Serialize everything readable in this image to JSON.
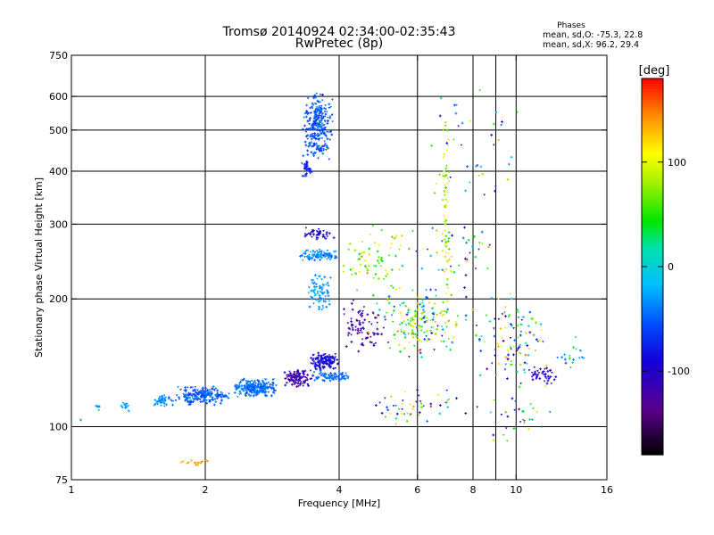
{
  "chart_data": {
    "type": "scatter",
    "title": "Tromsø 20140924 02:34:00-02:35:43",
    "subtitle": "RwPretec (8p)",
    "xlabel": "Frequency [MHz]",
    "ylabel": "Stationary phase Virtual Height [km]",
    "x_scale": "log",
    "y_scale": "log",
    "xlim": [
      1,
      16
    ],
    "ylim": [
      75,
      750
    ],
    "x_ticks": [
      1,
      2,
      4,
      6,
      8,
      10,
      16
    ],
    "x_tick_labels": [
      "1",
      "2",
      "4",
      "6",
      "8",
      "10",
      "16"
    ],
    "y_ticks": [
      75,
      100,
      200,
      300,
      400,
      500,
      600,
      750
    ],
    "y_tick_labels": [
      "75",
      "100",
      "200",
      "300",
      "400",
      "500",
      "600",
      "750"
    ],
    "x_gridlines": [
      2,
      4,
      6,
      8,
      10
    ],
    "x_minor_gridline": 9,
    "y_gridlines": [
      100,
      200,
      300,
      400,
      500,
      600
    ],
    "grid": true,
    "colorbar": {
      "label": "[deg]",
      "range": [
        -180,
        180
      ],
      "ticks": [
        -100,
        0,
        100
      ],
      "tick_labels": [
        "-100",
        "0",
        "100"
      ]
    },
    "stats": {
      "heading": "Phases",
      "line_o": "mean, sd,O: -75.3, 22.8",
      "line_x": "mean, sd,X:  96.2, 29.4"
    },
    "clusters": [
      {
        "x": [
          1.04,
          1.06
        ],
        "y": [
          103,
          106
        ],
        "n": 3,
        "phase": [
          -40,
          -25
        ]
      },
      {
        "x": [
          1.13,
          1.16
        ],
        "y": [
          109,
          113
        ],
        "n": 8,
        "phase": [
          -40,
          -20
        ]
      },
      {
        "x": [
          1.28,
          1.36
        ],
        "y": [
          108,
          116
        ],
        "n": 14,
        "phase": [
          -40,
          -20
        ]
      },
      {
        "x": [
          1.52,
          1.7
        ],
        "y": [
          111,
          120
        ],
        "n": 45,
        "phase": [
          -50,
          -20
        ]
      },
      {
        "x": [
          1.7,
          2.3
        ],
        "y": [
          112,
          125
        ],
        "n": 200,
        "phase": [
          -70,
          -30
        ]
      },
      {
        "x": [
          2.3,
          2.95
        ],
        "y": [
          117,
          130
        ],
        "n": 230,
        "phase": [
          -60,
          -30
        ]
      },
      {
        "x": [
          1.75,
          2.05
        ],
        "y": [
          81,
          84
        ],
        "n": 18,
        "phase": [
          125,
          150
        ]
      },
      {
        "x": [
          3.0,
          3.5
        ],
        "y": [
          123,
          137
        ],
        "n": 110,
        "phase": [
          -135,
          -95
        ]
      },
      {
        "x": [
          3.4,
          4.0
        ],
        "y": [
          135,
          150
        ],
        "n": 140,
        "phase": [
          -105,
          -75
        ]
      },
      {
        "x": [
          3.45,
          4.3
        ],
        "y": [
          127,
          136
        ],
        "n": 70,
        "phase": [
          -60,
          -35
        ]
      },
      {
        "x": [
          3.3,
          3.9
        ],
        "y": [
          420,
          620
        ],
        "n": 280,
        "phase": [
          -75,
          -35
        ]
      },
      {
        "x": [
          3.25,
          3.5
        ],
        "y": [
          385,
          430
        ],
        "n": 30,
        "phase": [
          -90,
          -60
        ]
      },
      {
        "x": [
          3.2,
          4.0
        ],
        "y": [
          245,
          262
        ],
        "n": 90,
        "phase": [
          -50,
          -20
        ]
      },
      {
        "x": [
          3.3,
          3.9
        ],
        "y": [
          275,
          295
        ],
        "n": 45,
        "phase": [
          -110,
          -70
        ]
      },
      {
        "x": [
          3.4,
          3.85
        ],
        "y": [
          185,
          230
        ],
        "n": 80,
        "phase": [
          -45,
          -15
        ]
      },
      {
        "x": [
          4.0,
          5.0
        ],
        "y": [
          150,
          200
        ],
        "n": 80,
        "phase": [
          -150,
          -90
        ]
      },
      {
        "x": [
          4.0,
          6.0
        ],
        "y": [
          200,
          300
        ],
        "n": 70,
        "phase": [
          30,
          150
        ]
      },
      {
        "x": [
          5.0,
          7.5
        ],
        "y": [
          150,
          200
        ],
        "n": 90,
        "phase": [
          20,
          130
        ]
      },
      {
        "x": [
          4.5,
          8.5
        ],
        "y": [
          140,
          220
        ],
        "n": 110,
        "phase": [
          -140,
          150
        ]
      },
      {
        "x": [
          6.8,
          7.1
        ],
        "y": [
          200,
          600
        ],
        "n": 60,
        "phase": [
          50,
          130
        ]
      },
      {
        "x": [
          4.3,
          8.0
        ],
        "y": [
          100,
          125
        ],
        "n": 50,
        "phase": [
          -140,
          140
        ]
      },
      {
        "x": [
          8.0,
          12.0
        ],
        "y": [
          120,
          210
        ],
        "n": 110,
        "phase": [
          -140,
          150
        ]
      },
      {
        "x": [
          10.5,
          12.5
        ],
        "y": [
          125,
          140
        ],
        "n": 40,
        "phase": [
          -120,
          -90
        ]
      },
      {
        "x": [
          8.0,
          12.5
        ],
        "y": [
          90,
          120
        ],
        "n": 30,
        "phase": [
          -140,
          140
        ]
      },
      {
        "x": [
          6.0,
          11.5
        ],
        "y": [
          300,
          680
        ],
        "n": 40,
        "phase": [
          -140,
          150
        ]
      },
      {
        "x": [
          5.5,
          9.5
        ],
        "y": [
          220,
          300
        ],
        "n": 40,
        "phase": [
          -140,
          150
        ]
      },
      {
        "x": [
          12.0,
          14.5
        ],
        "y": [
          130,
          170
        ],
        "n": 18,
        "phase": [
          -60,
          40
        ]
      }
    ]
  }
}
